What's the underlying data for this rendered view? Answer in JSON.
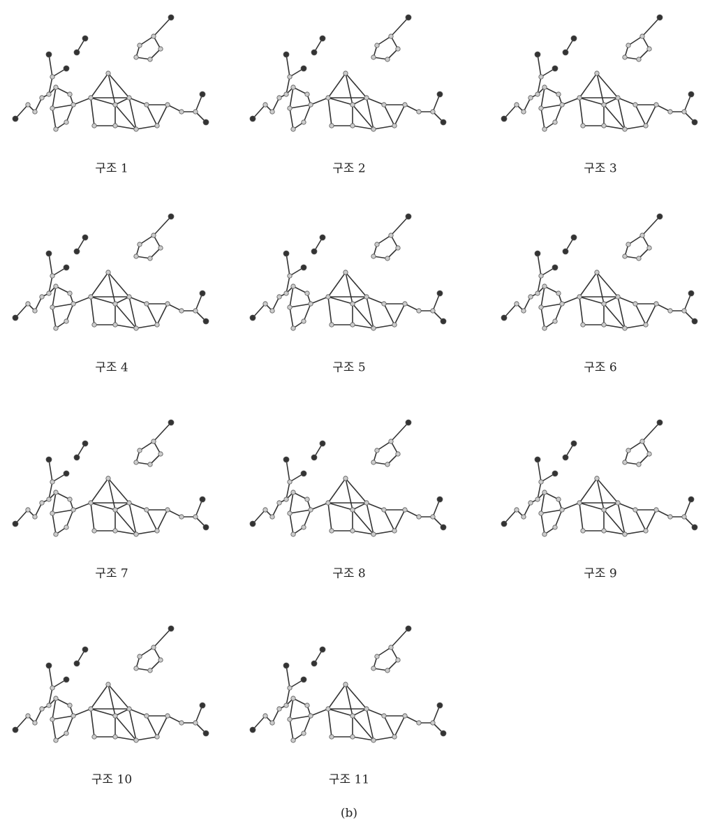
{
  "panels": [
    {
      "label": "구조 1"
    },
    {
      "label": "구조 2"
    },
    {
      "label": "구조 3"
    },
    {
      "label": "구조 4"
    },
    {
      "label": "구조 5"
    },
    {
      "label": "구조 6"
    },
    {
      "label": "구조 7"
    },
    {
      "label": "구조 8"
    },
    {
      "label": "구조 9"
    },
    {
      "label": "구조 10"
    },
    {
      "label": "구조 11"
    }
  ],
  "caption": "(b)"
}
